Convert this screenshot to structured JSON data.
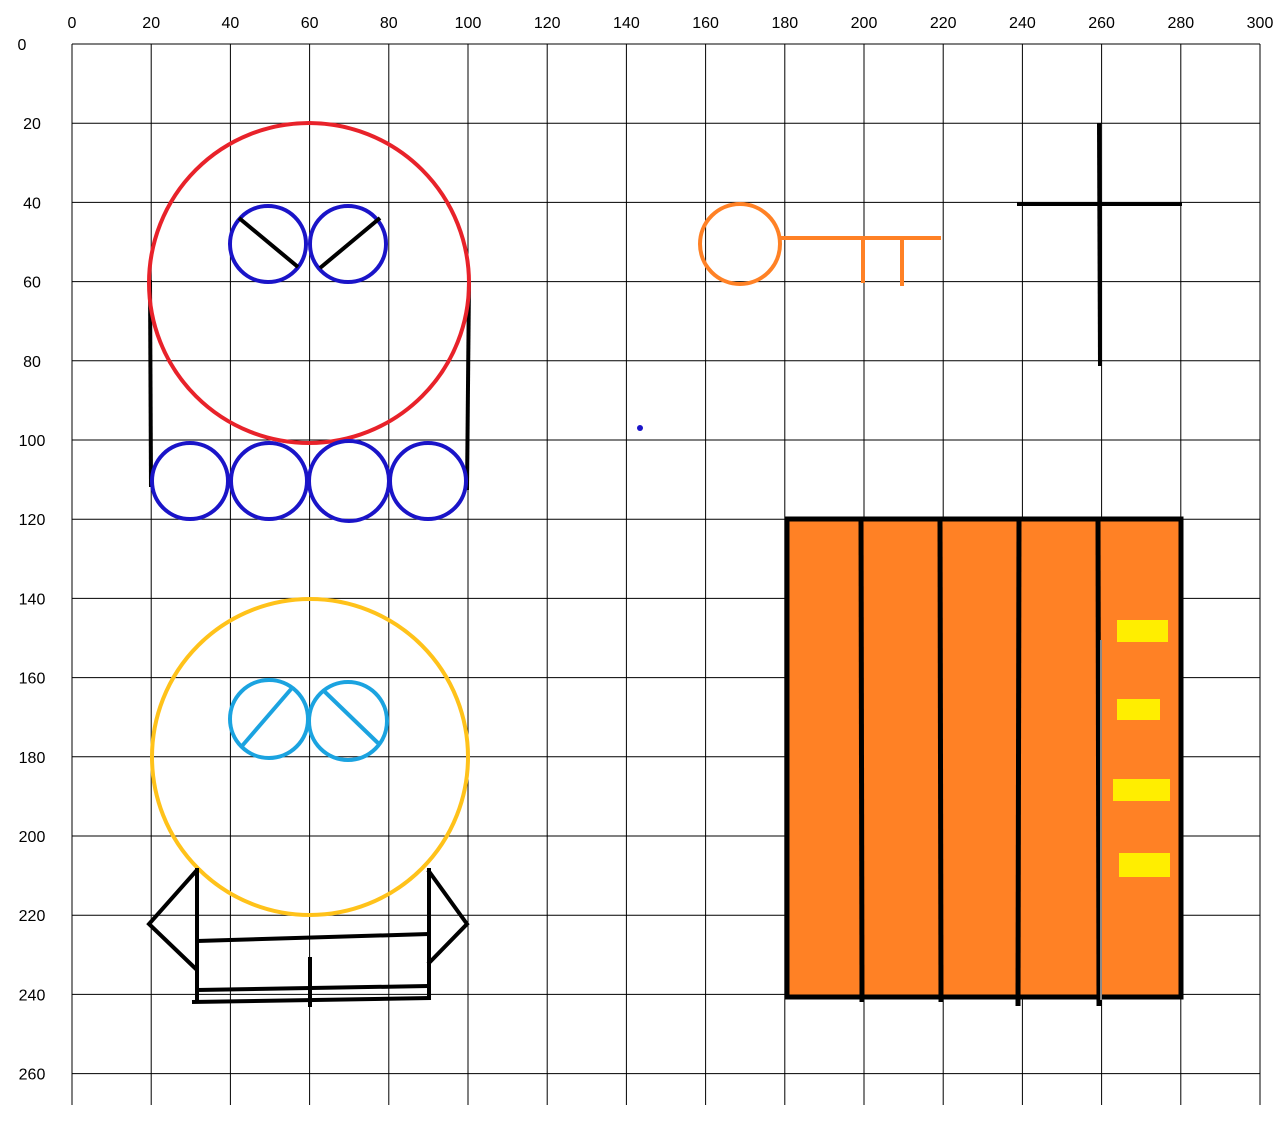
{
  "axes": {
    "x_ticks": [
      0,
      20,
      40,
      60,
      80,
      100,
      120,
      140,
      160,
      180,
      200,
      220,
      240,
      260,
      280,
      300
    ],
    "y_ticks": [
      0,
      20,
      40,
      60,
      80,
      100,
      120,
      140,
      160,
      180,
      200,
      220,
      240,
      260
    ]
  },
  "colors": {
    "red": "#e8222a",
    "blue": "#1a14c8",
    "orange": "#ff8125",
    "yellow": "#ffc21a",
    "cyan": "#1ba3e0",
    "black": "#000000",
    "door_fill": "#ff8125",
    "door_lights": "#ffee00"
  },
  "shapes": {
    "robot_head": {
      "center": [
        60,
        60
      ],
      "radius": 40,
      "color": "red"
    },
    "robot_eyes": [
      {
        "center": [
          50,
          50
        ],
        "radius": 10
      },
      {
        "center": [
          70,
          50
        ],
        "radius": 10
      }
    ],
    "robot_wheels": [
      {
        "center": [
          30,
          110
        ],
        "radius": 10
      },
      {
        "center": [
          50,
          110
        ],
        "radius": 10
      },
      {
        "center": [
          70,
          110
        ],
        "radius": 10
      },
      {
        "center": [
          90,
          110
        ],
        "radius": 10
      }
    ],
    "robot2_head": {
      "center": [
        60,
        180
      ],
      "radius": 40,
      "color": "yellow"
    },
    "robot2_eyes": [
      {
        "center": [
          50,
          170
        ],
        "radius": 10
      },
      {
        "center": [
          70,
          170
        ],
        "radius": 10
      }
    ],
    "key": {
      "loop_center": [
        168,
        50
      ],
      "loop_radius": 10,
      "shaft_y": 49,
      "shaft_x": [
        178,
        220
      ],
      "teeth_x": [
        200,
        210
      ]
    },
    "cross": {
      "vertical_x": 260,
      "vertical_y": [
        20,
        80
      ],
      "horizontal_y": 40,
      "horizontal_x": [
        240,
        280
      ]
    },
    "door": {
      "x": [
        180,
        280
      ],
      "y": [
        120,
        240
      ],
      "divider_x": [
        200,
        220,
        240,
        260
      ]
    },
    "dot": {
      "center": [
        143,
        96
      ]
    }
  }
}
